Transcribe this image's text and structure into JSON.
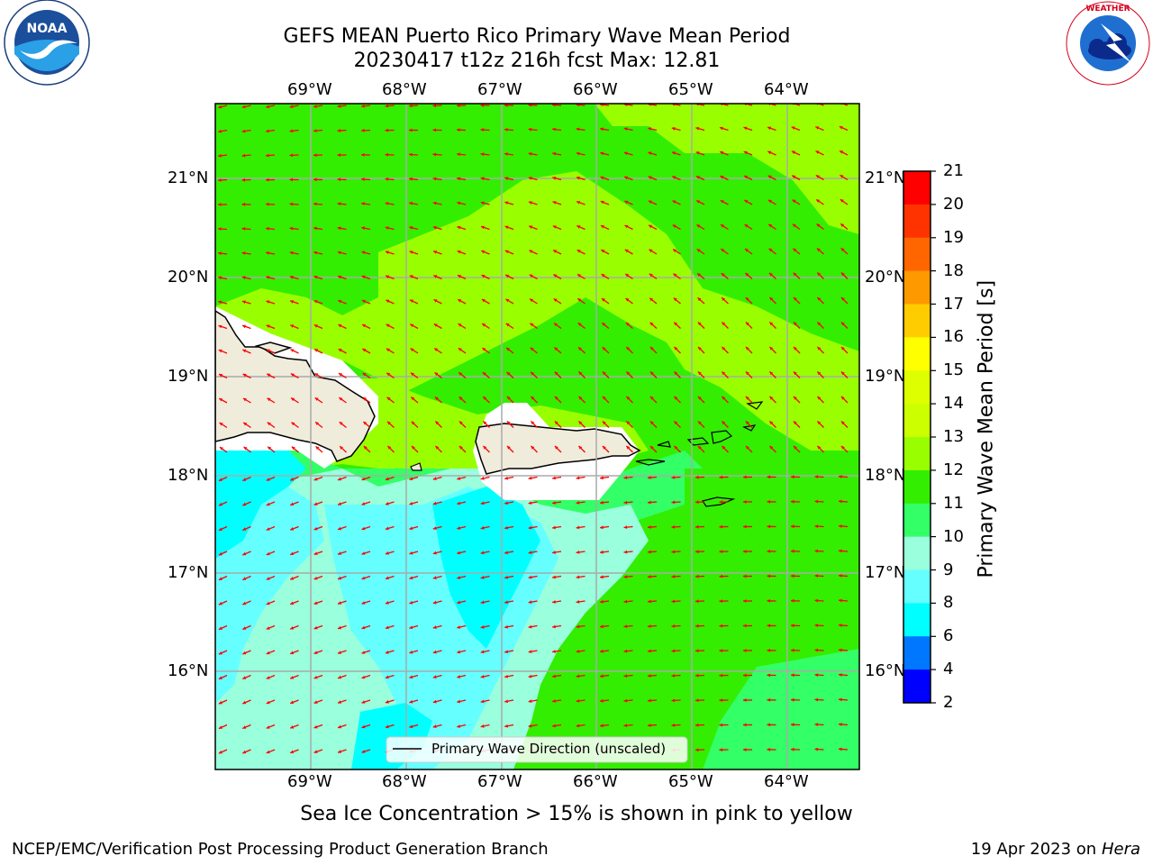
{
  "title": {
    "line1": "GEFS MEAN Puerto Rico Primary Wave Mean Period",
    "line2": "20230417 t12z 216h fcst   Max: 12.81"
  },
  "map": {
    "lon_labels": [
      "69°W",
      "68°W",
      "67°W",
      "66°W",
      "65°W",
      "64°W"
    ],
    "lat_labels": [
      "21°N",
      "20°N",
      "19°N",
      "18°N",
      "17°N",
      "16°N"
    ],
    "legend_label": "Primary Wave Direction (unscaled)",
    "arrow_color": "#ff0000",
    "land_color": "#efecdc"
  },
  "colorbar": {
    "label": "Primary Wave Mean Period [s]",
    "ticks": [
      "21",
      "20",
      "19",
      "18",
      "17",
      "16",
      "15",
      "14",
      "13",
      "12",
      "11",
      "10",
      "9",
      "8",
      "6",
      "4",
      "2"
    ],
    "colors": [
      "#ff0000",
      "#ff3300",
      "#ff6600",
      "#ff9900",
      "#ffcc00",
      "#ffff00",
      "#ddff00",
      "#ccff00",
      "#99ff00",
      "#33ee00",
      "#33ff66",
      "#99ffdd",
      "#66ffff",
      "#00ffff",
      "#0077ff",
      "#0000ff"
    ]
  },
  "caption": "Sea Ice Concentration > 15% is shown in pink to yellow",
  "footer": {
    "left": "NCEP/EMC/Verification Post Processing Product Generation Branch",
    "right_prefix": "19 Apr 2023 on ",
    "right_machine": "Hera"
  },
  "logos": {
    "noaa_text": "NOAA",
    "nws_text": "NATIONAL WEATHER SERVICE"
  }
}
